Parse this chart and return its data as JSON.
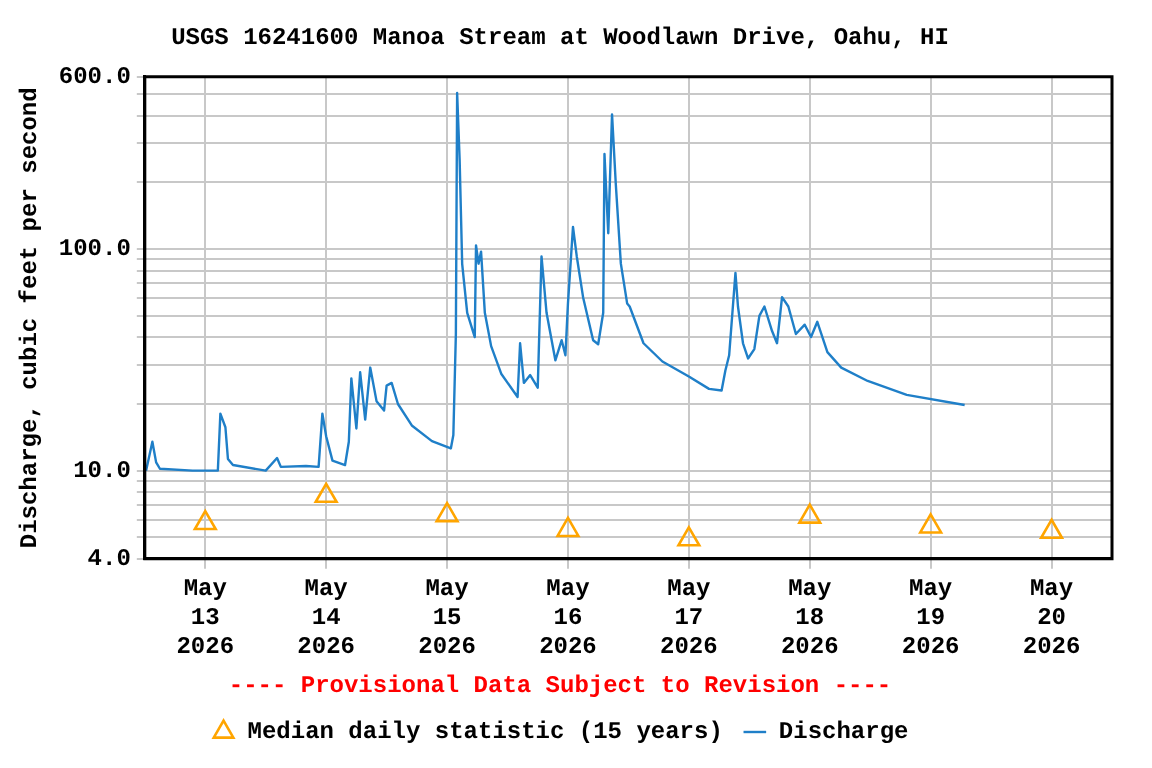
{
  "chart_data": {
    "type": "line",
    "title": "USGS 16241600 Manoa Stream at Woodlawn Drive, Oahu, HI",
    "ylabel": "Discharge, cubic feet per second",
    "annotations": [
      "---- Provisional Data Subject to Revision ----"
    ],
    "log": "y",
    "grid": true,
    "legend": "bottom",
    "xlim": [
      "2026-05-12T12:00",
      "2026-05-20T12:00"
    ],
    "xticks": [
      {
        "value": "2026-05-13",
        "label": "May 13 2026"
      },
      {
        "value": "2026-05-14",
        "label": "May 14 2026"
      },
      {
        "value": "2026-05-15",
        "label": "May 15 2026"
      },
      {
        "value": "2026-05-16",
        "label": "May 16 2026"
      },
      {
        "value": "2026-05-17",
        "label": "May 17 2026"
      },
      {
        "value": "2026-05-18",
        "label": "May 18 2026"
      },
      {
        "value": "2026-05-19",
        "label": "May 19 2026"
      },
      {
        "value": "2026-05-20",
        "label": "May 20 2026"
      }
    ],
    "ylim": [
      4,
      600
    ],
    "yticks": [
      {
        "value": 4,
        "label": "4.0"
      },
      {
        "value": 5,
        "label": null
      },
      {
        "value": 6,
        "label": null
      },
      {
        "value": 7,
        "label": null
      },
      {
        "value": 8,
        "label": null
      },
      {
        "value": 9,
        "label": null
      },
      {
        "value": 10,
        "label": "10.0"
      },
      {
        "value": 20,
        "label": null
      },
      {
        "value": 30,
        "label": null
      },
      {
        "value": 40,
        "label": null
      },
      {
        "value": 50,
        "label": null
      },
      {
        "value": 60,
        "label": null
      },
      {
        "value": 70,
        "label": null
      },
      {
        "value": 80,
        "label": null
      },
      {
        "value": 90,
        "label": null
      },
      {
        "value": 100,
        "label": "100.0"
      },
      {
        "value": 200,
        "label": null
      },
      {
        "value": 300,
        "label": null
      },
      {
        "value": 400,
        "label": null
      },
      {
        "value": 500,
        "label": null
      },
      {
        "value": 600,
        "label": "600.0"
      }
    ],
    "series": [
      {
        "name": "Median daily statistic (15 years)",
        "type": "scatter",
        "marker": "triangle",
        "color": "#ffa500",
        "x": [
          "2026-05-13",
          "2026-05-14",
          "2026-05-15",
          "2026-05-16",
          "2026-05-17",
          "2026-05-18",
          "2026-05-19",
          "2026-05-20"
        ],
        "values": [
          5.8,
          7.7,
          6.3,
          5.4,
          4.9,
          6.2,
          5.6,
          5.3
        ]
      },
      {
        "name": "Discharge",
        "marker": "none",
        "color": "#1f7fc8",
        "x": [
          "2026-05-12T12:15",
          "2026-05-12T13:30",
          "2026-05-12T14:15",
          "2026-05-12T15:00",
          "2026-05-12T21:30",
          "2026-05-13T02:30",
          "2026-05-13T03:00",
          "2026-05-13T04:00",
          "2026-05-13T04:30",
          "2026-05-13T05:30",
          "2026-05-13T12:00",
          "2026-05-13T14:15",
          "2026-05-13T15:00",
          "2026-05-13T20:00",
          "2026-05-13T22:30",
          "2026-05-13T23:15",
          "2026-05-14T00:00",
          "2026-05-14T01:15",
          "2026-05-14T03:45",
          "2026-05-14T04:30",
          "2026-05-14T05:00",
          "2026-05-14T06:00",
          "2026-05-14T06:45",
          "2026-05-14T07:45",
          "2026-05-14T08:45",
          "2026-05-14T10:00",
          "2026-05-14T11:30",
          "2026-05-14T12:00",
          "2026-05-14T13:00",
          "2026-05-14T14:15",
          "2026-05-14T17:00",
          "2026-05-14T21:00",
          "2026-05-15T00:45",
          "2026-05-15T01:15",
          "2026-05-15T01:45",
          "2026-05-15T02:00",
          "2026-05-15T02:30",
          "2026-05-15T03:00",
          "2026-05-15T04:00",
          "2026-05-15T05:30",
          "2026-05-15T05:45",
          "2026-05-15T06:15",
          "2026-05-15T06:45",
          "2026-05-15T07:30",
          "2026-05-15T08:45",
          "2026-05-15T10:45",
          "2026-05-15T14:00",
          "2026-05-15T14:30",
          "2026-05-15T15:15",
          "2026-05-15T16:30",
          "2026-05-15T18:00",
          "2026-05-15T18:45",
          "2026-05-15T19:45",
          "2026-05-15T21:30",
          "2026-05-15T22:45",
          "2026-05-15T23:30",
          "2026-05-16T00:00",
          "2026-05-16T01:00",
          "2026-05-16T01:45",
          "2026-05-16T03:00",
          "2026-05-16T05:00",
          "2026-05-16T06:00",
          "2026-05-16T07:00",
          "2026-05-16T07:15",
          "2026-05-16T08:00",
          "2026-05-16T08:45",
          "2026-05-16T09:30",
          "2026-05-16T10:30",
          "2026-05-16T11:45",
          "2026-05-16T12:15",
          "2026-05-16T15:00",
          "2026-05-16T18:45",
          "2026-05-17T00:00",
          "2026-05-17T04:00",
          "2026-05-17T06:30",
          "2026-05-17T07:15",
          "2026-05-17T08:00",
          "2026-05-17T09:15",
          "2026-05-17T09:45",
          "2026-05-17T10:45",
          "2026-05-17T11:45",
          "2026-05-17T13:00",
          "2026-05-17T14:00",
          "2026-05-17T15:00",
          "2026-05-17T16:30",
          "2026-05-17T17:30",
          "2026-05-17T18:30",
          "2026-05-17T19:45",
          "2026-05-17T21:15",
          "2026-05-17T23:00",
          "2026-05-18T00:15",
          "2026-05-18T01:30",
          "2026-05-18T03:30",
          "2026-05-18T06:15",
          "2026-05-18T11:30",
          "2026-05-18T19:15",
          "2026-05-19T06:45"
        ],
        "values": [
          10.0,
          13.5,
          10.9,
          10.2,
          10.0,
          10.0,
          18.1,
          15.7,
          11.3,
          10.6,
          10.0,
          11.4,
          10.4,
          10.5,
          10.4,
          18.1,
          14.3,
          11.1,
          10.6,
          13.5,
          26.1,
          15.5,
          27.8,
          17.0,
          29.2,
          20.6,
          18.7,
          24.2,
          24.9,
          20.0,
          16.0,
          13.6,
          12.6,
          14.5,
          41.4,
          507,
          252,
          85.9,
          51.6,
          40.1,
          104,
          86,
          97.5,
          51.6,
          36.5,
          27.4,
          21.5,
          37.6,
          24.9,
          27.0,
          23.7,
          92.7,
          51.6,
          31.5,
          38.8,
          33.2,
          56.9,
          126,
          92.7,
          60.7,
          38.8,
          37.2,
          51.6,
          269,
          118,
          406,
          196,
          86,
          56.9,
          55.1,
          37.6,
          31.1,
          26.6,
          23.4,
          23.0,
          28.3,
          33.2,
          78.1,
          55.1,
          37.6,
          32.1,
          35.4,
          50,
          55.1,
          42.8,
          37.6,
          60.7,
          55.1,
          41.4,
          45.6,
          40.1,
          47.0,
          34.3,
          29.2,
          25.4,
          22.0,
          19.8
        ]
      }
    ]
  }
}
